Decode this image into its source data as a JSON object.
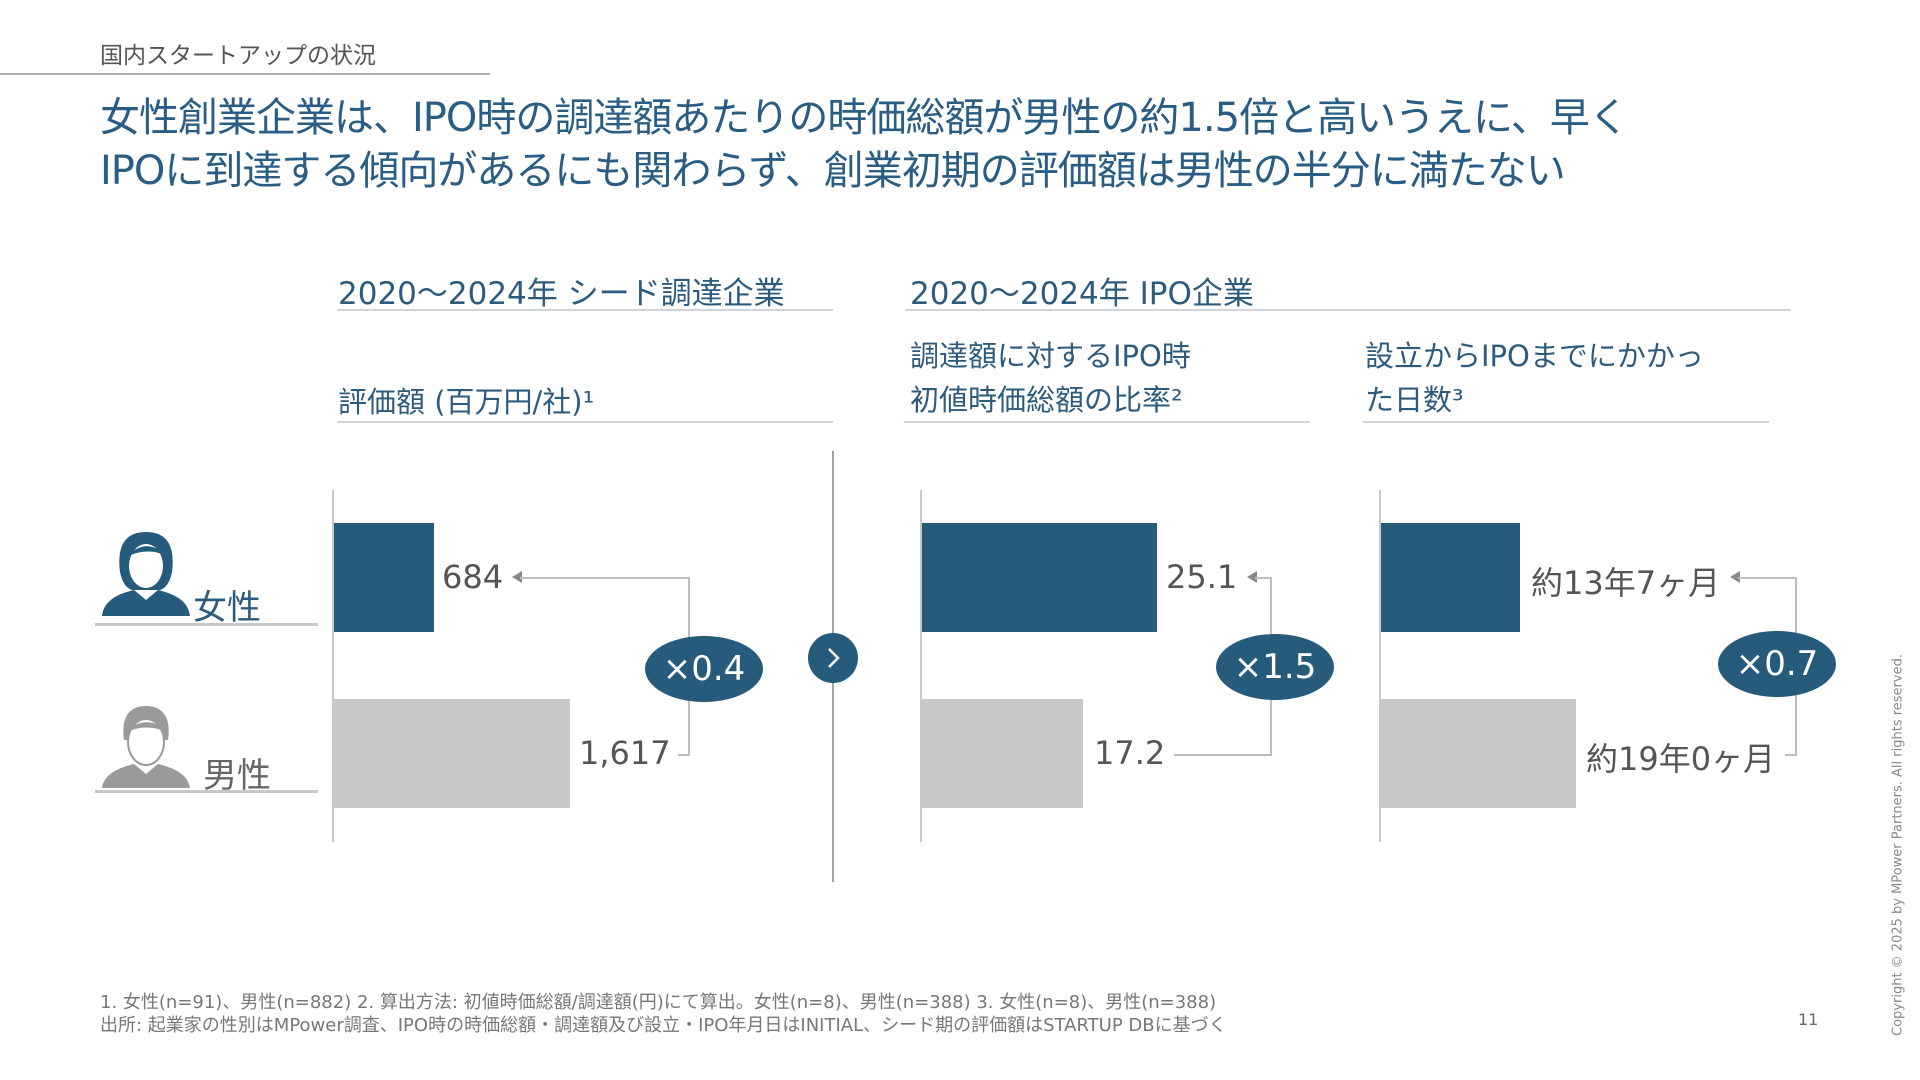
{
  "section_label": "国内スタートアップの状況",
  "title": {
    "line1": "女性創業企業は、IPO時の調達額あたりの時価総額が男性の約1.5倍と高いうえに、早く",
    "line2": "IPOに到達する傾向があるにも関わらず、創業初期の評価額は男性の半分に満たない"
  },
  "headers": {
    "seed": "2020～2024年 シード調達企業",
    "ipo": "2020～2024年 IPO企業"
  },
  "legend": {
    "female": "女性",
    "male": "男性"
  },
  "colors": {
    "female": "#265b7b",
    "male": "#c8c8c8",
    "accent": "#2a5d84"
  },
  "chart_data": [
    {
      "type": "bar",
      "title": "評価額 (百万円/社)¹",
      "categories": [
        "女性",
        "男性"
      ],
      "values": [
        684,
        1617
      ],
      "value_labels": [
        "684",
        "1,617"
      ],
      "ratio_label": "×0.4"
    },
    {
      "type": "bar",
      "title_lines": [
        "調達額に対するIPO時",
        "初値時価総額の比率²"
      ],
      "categories": [
        "女性",
        "男性"
      ],
      "values": [
        25.1,
        17.2
      ],
      "value_labels": [
        "25.1",
        "17.2"
      ],
      "ratio_label": "×1.5"
    },
    {
      "type": "bar",
      "title_lines": [
        "設立からIPOまでにかかっ",
        "た日数³"
      ],
      "categories": [
        "女性",
        "男性"
      ],
      "values": [
        13.58,
        19.0
      ],
      "value_labels": [
        "約13年7ヶ月",
        "約19年0ヶ月"
      ],
      "ratio_label": "×0.7"
    }
  ],
  "footnotes": {
    "line1": "1. 女性(n=91)、男性(n=882) 2. 算出方法: 初値時価総額/調達額(円)にて算出。女性(n=8)、男性(n=388)   3. 女性(n=8)、男性(n=388)",
    "line2": "出所: 起業家の性別はMPower調査、IPO時の時価総額・調達額及び設立・IPO年月日はINITIAL、シード期の評価額はSTARTUP DBに基づく"
  },
  "page_number": "11",
  "copyright": "Copyright © 2025 by MPower Partners. All rights reserved."
}
